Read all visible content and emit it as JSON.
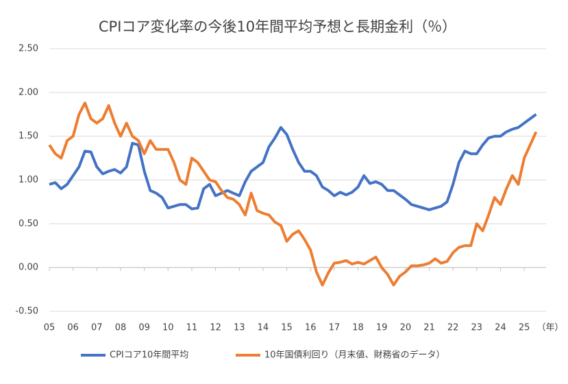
{
  "chart_data": {
    "type": "line",
    "title": "CPIコア変化率の今後10年間平均予想と長期金利（％）",
    "x_unit": "（年）",
    "x": [
      2005,
      2005.25,
      2005.5,
      2005.75,
      2006,
      2006.25,
      2006.5,
      2006.75,
      2007,
      2007.25,
      2007.5,
      2007.75,
      2008,
      2008.25,
      2008.5,
      2008.75,
      2009,
      2009.25,
      2009.5,
      2009.75,
      2010,
      2010.25,
      2010.5,
      2010.75,
      2011,
      2011.25,
      2011.5,
      2011.75,
      2012,
      2012.25,
      2012.5,
      2012.75,
      2013,
      2013.25,
      2013.5,
      2013.75,
      2014,
      2014.25,
      2014.5,
      2014.75,
      2015,
      2015.25,
      2015.5,
      2015.75,
      2016,
      2016.25,
      2016.5,
      2016.75,
      2017,
      2017.25,
      2017.5,
      2017.75,
      2018,
      2018.25,
      2018.5,
      2018.75,
      2019,
      2019.25,
      2019.5,
      2019.75,
      2020,
      2020.25,
      2020.5,
      2020.75,
      2021,
      2021.25,
      2021.5,
      2021.75,
      2022,
      2022.25,
      2022.5,
      2022.75,
      2023,
      2023.25,
      2023.5,
      2023.75,
      2024,
      2024.25,
      2024.5,
      2024.75,
      2025,
      2025.25,
      2025.5
    ],
    "series": [
      {
        "name": "CPIコア10年間平均",
        "color": "#4472c4",
        "values": [
          0.95,
          0.97,
          0.9,
          0.95,
          1.05,
          1.15,
          1.33,
          1.32,
          1.15,
          1.07,
          1.1,
          1.12,
          1.08,
          1.15,
          1.42,
          1.4,
          1.1,
          0.88,
          0.85,
          0.8,
          0.68,
          0.7,
          0.72,
          0.72,
          0.67,
          0.68,
          0.9,
          0.95,
          0.82,
          0.85,
          0.88,
          0.85,
          0.82,
          0.98,
          1.1,
          1.15,
          1.2,
          1.38,
          1.48,
          1.6,
          1.52,
          1.35,
          1.2,
          1.1,
          1.1,
          1.05,
          0.92,
          0.88,
          0.82,
          0.86,
          0.83,
          0.86,
          0.92,
          1.05,
          0.96,
          0.98,
          0.95,
          0.88,
          0.88,
          0.83,
          0.78,
          0.72,
          0.7,
          0.68,
          0.66,
          0.68,
          0.7,
          0.75,
          0.95,
          1.2,
          1.33,
          1.3,
          1.3,
          1.4,
          1.48,
          1.5,
          1.5,
          1.55,
          1.58,
          1.6,
          1.65,
          1.7,
          1.75
        ]
      },
      {
        "name": "10年国債利回り（月末値、財務省のデータ）",
        "color": "#ed7d31",
        "values": [
          1.4,
          1.3,
          1.25,
          1.45,
          1.5,
          1.75,
          1.88,
          1.7,
          1.65,
          1.7,
          1.85,
          1.65,
          1.5,
          1.65,
          1.5,
          1.45,
          1.3,
          1.45,
          1.35,
          1.35,
          1.35,
          1.2,
          1.0,
          0.95,
          1.25,
          1.2,
          1.1,
          1.0,
          0.98,
          0.88,
          0.8,
          0.78,
          0.72,
          0.6,
          0.85,
          0.65,
          0.62,
          0.6,
          0.52,
          0.48,
          0.3,
          0.38,
          0.42,
          0.32,
          0.2,
          -0.05,
          -0.2,
          -0.06,
          0.05,
          0.06,
          0.08,
          0.04,
          0.06,
          0.04,
          0.08,
          0.12,
          0.0,
          -0.08,
          -0.2,
          -0.1,
          -0.05,
          0.02,
          0.02,
          0.03,
          0.05,
          0.1,
          0.05,
          0.07,
          0.17,
          0.23,
          0.25,
          0.25,
          0.5,
          0.42,
          0.6,
          0.8,
          0.72,
          0.9,
          1.05,
          0.95,
          1.25,
          1.4,
          1.55
        ]
      }
    ],
    "xlim": [
      2005,
      2025.92
    ],
    "xticks": [
      {
        "value": 2005,
        "label": "05"
      },
      {
        "value": 2006,
        "label": "06"
      },
      {
        "value": 2007,
        "label": "07"
      },
      {
        "value": 2008,
        "label": "08"
      },
      {
        "value": 2009,
        "label": "09"
      },
      {
        "value": 2010,
        "label": "10"
      },
      {
        "value": 2011,
        "label": "11"
      },
      {
        "value": 2012,
        "label": "12"
      },
      {
        "value": 2013,
        "label": "13"
      },
      {
        "value": 2014,
        "label": "14"
      },
      {
        "value": 2015,
        "label": "15"
      },
      {
        "value": 2016,
        "label": "16"
      },
      {
        "value": 2017,
        "label": "17"
      },
      {
        "value": 2018,
        "label": "18"
      },
      {
        "value": 2019,
        "label": "19"
      },
      {
        "value": 2020,
        "label": "20"
      },
      {
        "value": 2021,
        "label": "21"
      },
      {
        "value": 2022,
        "label": "22"
      },
      {
        "value": 2023,
        "label": "23"
      },
      {
        "value": 2024,
        "label": "24"
      },
      {
        "value": 2025,
        "label": "25"
      }
    ],
    "ylim": [
      -0.5,
      2.5
    ],
    "yticks": [
      {
        "value": -0.5,
        "label": "-0.50"
      },
      {
        "value": 0,
        "label": "0.00"
      },
      {
        "value": 0.5,
        "label": "0.50"
      },
      {
        "value": 1,
        "label": "1.00"
      },
      {
        "value": 1.5,
        "label": "1.50"
      },
      {
        "value": 2,
        "label": "2.00"
      },
      {
        "value": 2.5,
        "label": "2.50"
      }
    ],
    "grid": true,
    "legend": "bottom"
  }
}
